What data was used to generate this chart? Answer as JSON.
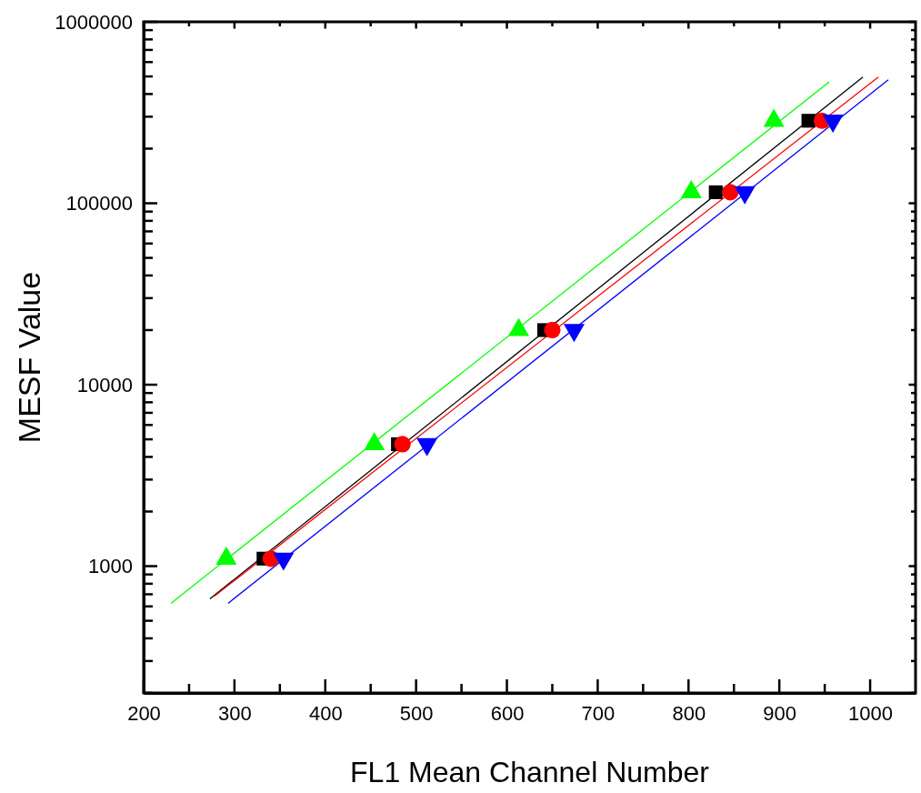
{
  "chart_data": {
    "type": "scatter",
    "xlabel": "FL1 Mean Channel Number",
    "ylabel": "MESF Value",
    "log": "y",
    "grid": false,
    "xlim": [
      200,
      1050
    ],
    "ylim": [
      200,
      1000000
    ],
    "xticks": [
      200,
      {
        "value": 250,
        "label": null
      },
      300,
      {
        "value": 350,
        "label": null
      },
      400,
      {
        "value": 450,
        "label": null
      },
      500,
      {
        "value": 550,
        "label": null
      },
      600,
      {
        "value": 650,
        "label": null
      },
      700,
      {
        "value": 750,
        "label": null
      },
      800,
      {
        "value": 850,
        "label": null
      },
      900,
      {
        "value": 950,
        "label": null
      },
      1000
    ],
    "yticks": [
      {
        "value": 200,
        "label": null
      },
      {
        "value": 300,
        "label": null
      },
      {
        "value": 400,
        "label": null
      },
      {
        "value": 500,
        "label": null
      },
      {
        "value": 600,
        "label": null
      },
      {
        "value": 700,
        "label": null
      },
      {
        "value": 800,
        "label": null
      },
      {
        "value": 900,
        "label": null
      },
      1000,
      {
        "value": 2000,
        "label": null
      },
      {
        "value": 3000,
        "label": null
      },
      {
        "value": 4000,
        "label": null
      },
      {
        "value": 5000,
        "label": null
      },
      {
        "value": 6000,
        "label": null
      },
      {
        "value": 7000,
        "label": null
      },
      {
        "value": 8000,
        "label": null
      },
      {
        "value": 9000,
        "label": null
      },
      10000,
      {
        "value": 20000,
        "label": null
      },
      {
        "value": 30000,
        "label": null
      },
      {
        "value": 40000,
        "label": null
      },
      {
        "value": 50000,
        "label": null
      },
      {
        "value": 60000,
        "label": null
      },
      {
        "value": 70000,
        "label": null
      },
      {
        "value": 80000,
        "label": null
      },
      {
        "value": 90000,
        "label": null
      },
      100000,
      {
        "value": 200000,
        "label": null
      },
      {
        "value": 300000,
        "label": null
      },
      {
        "value": 400000,
        "label": null
      },
      {
        "value": 500000,
        "label": null
      },
      {
        "value": 600000,
        "label": null
      },
      {
        "value": 700000,
        "label": null
      },
      {
        "value": 800000,
        "label": null
      },
      {
        "value": 900000,
        "label": null
      },
      1000000
    ],
    "series": [
      {
        "type": "line",
        "color": "#00ff00",
        "x": [
          230,
          955
        ],
        "values": [
          624,
          467000
        ],
        "marker": "none"
      },
      {
        "type": "line",
        "color": "#000000",
        "x": [
          273,
          992
        ],
        "values": [
          661,
          496000
        ],
        "marker": "none"
      },
      {
        "type": "line",
        "color": "#ff0000",
        "x": [
          278,
          1009
        ],
        "values": [
          684,
          496000
        ],
        "marker": "none"
      },
      {
        "type": "line",
        "color": "#0000ff",
        "x": [
          293,
          1020
        ],
        "values": [
          624,
          479000
        ],
        "marker": "none"
      },
      {
        "color": "#00ff00",
        "marker": "triangle",
        "x": [
          291,
          454,
          613,
          803,
          894
        ],
        "values": [
          1100,
          4700,
          20000,
          115000,
          285000
        ]
      },
      {
        "color": "#000000",
        "marker": "square",
        "x": [
          332,
          480,
          641,
          830,
          932
        ],
        "values": [
          1100,
          4700,
          20000,
          115000,
          285000
        ]
      },
      {
        "color": "#ff0000",
        "marker": "circle",
        "x": [
          340,
          485,
          650,
          846,
          947
        ],
        "values": [
          1100,
          4700,
          20000,
          115000,
          285000
        ]
      },
      {
        "color": "#0000ff",
        "marker": "triangle-down",
        "x": [
          354,
          512,
          674,
          862,
          959
        ],
        "values": [
          1100,
          4700,
          20000,
          115000,
          285000
        ]
      }
    ]
  }
}
